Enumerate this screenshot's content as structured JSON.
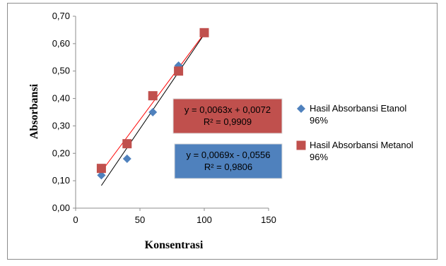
{
  "chart_data": {
    "type": "scatter",
    "xlabel": "Konsentrasi",
    "ylabel": "Absorbansi",
    "xlim": [
      0,
      150
    ],
    "ylim": [
      0,
      0.7
    ],
    "x_ticks": [
      "0",
      "50",
      "100",
      "150"
    ],
    "y_ticks": [
      "0,00",
      "0,10",
      "0,20",
      "0,30",
      "0,40",
      "0,50",
      "0,60",
      "0,70"
    ],
    "grid": false,
    "legend_position": "right",
    "series": [
      {
        "name": "Hasil Absorbansi Etanol 96%",
        "legend_lines": [
          "Hasil Absorbansi Etanol",
          "96%"
        ],
        "marker": "diamond",
        "color": "#4f81bd",
        "x": [
          20,
          40,
          60,
          80,
          100
        ],
        "y": [
          0.12,
          0.18,
          0.35,
          0.52,
          0.64
        ],
        "trendline": {
          "slope": 0.0069,
          "intercept": -0.0556,
          "color": "#000000"
        },
        "equation": "y = 0,0069x - 0,0556",
        "r2": "R² = 0,9806",
        "box_color": "#4f81bd"
      },
      {
        "name": "Hasil Absorbansi Metanol 96%",
        "legend_lines": [
          "Hasil Absorbansi Metanol",
          "96%"
        ],
        "marker": "square",
        "color": "#c0504d",
        "x": [
          20,
          40,
          60,
          80,
          100
        ],
        "y": [
          0.145,
          0.235,
          0.41,
          0.5,
          0.64
        ],
        "trendline": {
          "slope": 0.0063,
          "intercept": 0.0072,
          "color": "#ff0000"
        },
        "equation": "y = 0,0063x + 0,0072",
        "r2": "R² = 0,9909",
        "box_color": "#c0504d"
      }
    ]
  }
}
